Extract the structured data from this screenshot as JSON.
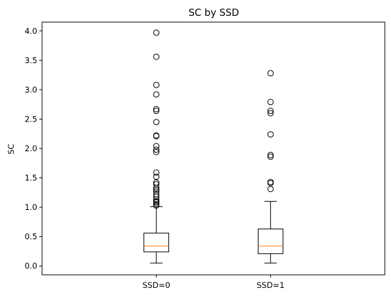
{
  "chart_data": {
    "type": "box",
    "title": "SC by SSD",
    "xlabel": "",
    "ylabel": "SC",
    "ylim": [
      -0.15,
      4.15
    ],
    "yticks": [
      "0.0",
      "0.5",
      "1.0",
      "1.5",
      "2.0",
      "2.5",
      "3.0",
      "3.5",
      "4.0"
    ],
    "grid": false,
    "colors": {
      "box": "#000000",
      "median": "#ff7f0e",
      "outlier": "#000000"
    },
    "categories": [
      "SSD=0",
      "SSD=1"
    ],
    "boxes": [
      {
        "label": "SSD=0",
        "whisker_low": 0.05,
        "q1": 0.24,
        "median": 0.34,
        "q3": 0.56,
        "whisker_high": 1.01,
        "outliers": [
          1.03,
          1.05,
          1.08,
          1.1,
          1.13,
          1.18,
          1.22,
          1.27,
          1.3,
          1.33,
          1.39,
          1.42,
          1.52,
          1.59,
          1.94,
          1.98,
          2.04,
          2.21,
          2.22,
          2.45,
          2.64,
          2.67,
          2.92,
          3.08,
          3.56,
          3.97
        ]
      },
      {
        "label": "SSD=1",
        "whisker_low": 0.05,
        "q1": 0.21,
        "median": 0.34,
        "q3": 0.63,
        "whisker_high": 1.1,
        "outliers": [
          1.31,
          1.41,
          1.43,
          1.86,
          1.89,
          2.24,
          2.6,
          2.64,
          2.79,
          3.28
        ]
      }
    ]
  }
}
